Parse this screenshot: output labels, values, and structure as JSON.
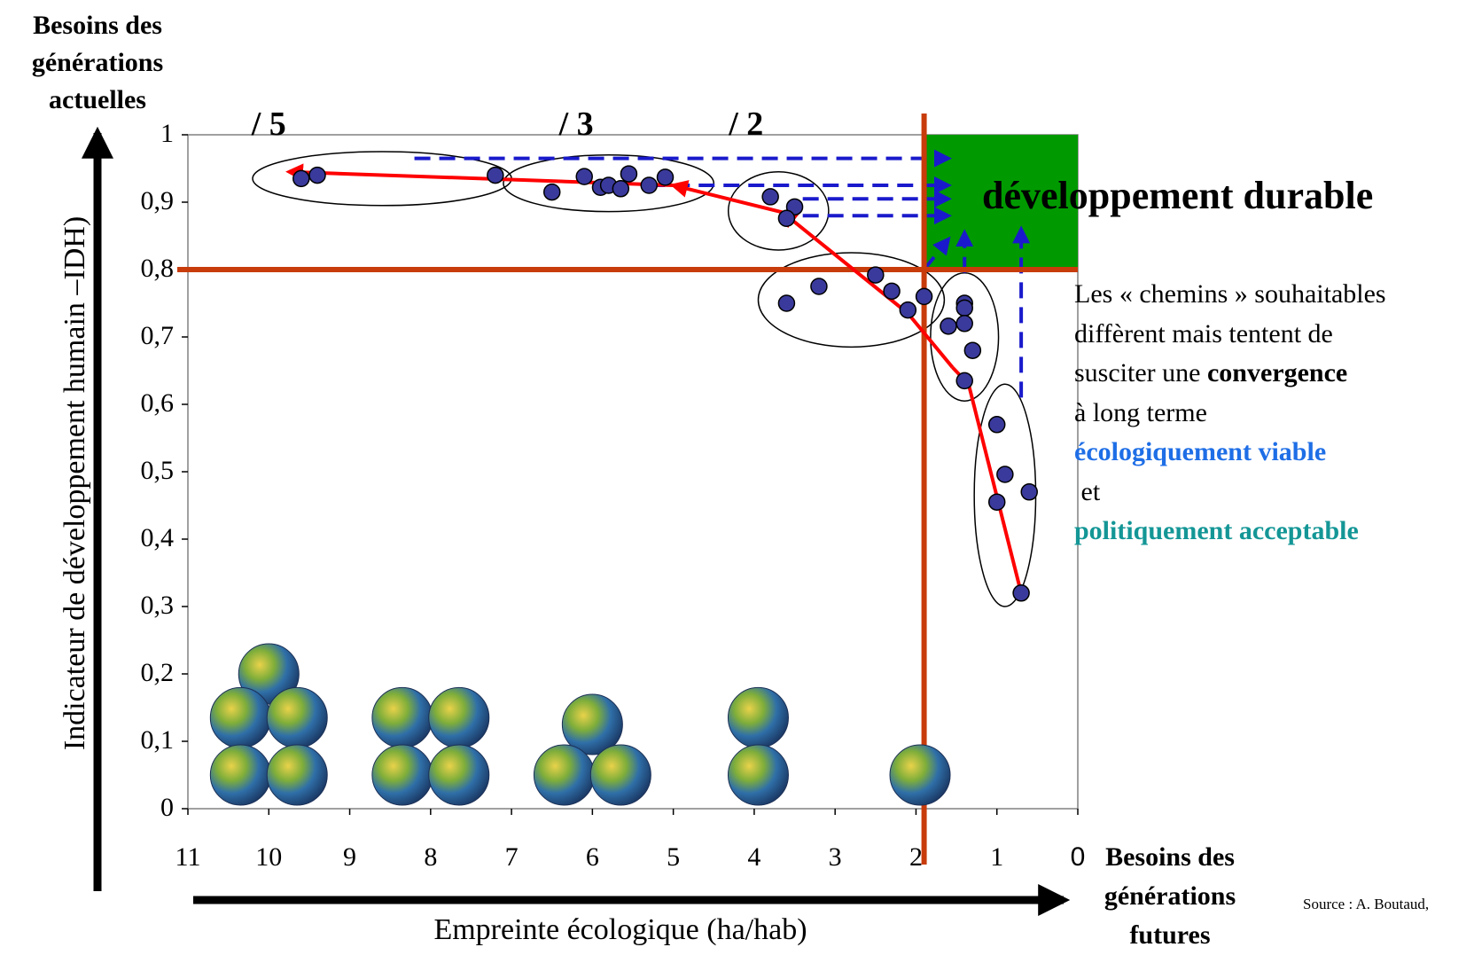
{
  "chart_data": {
    "type": "scatter",
    "xlabel": "Empreinte écologique (ha/hab)",
    "ylabel": "Indicateur de développement humain –IDH)",
    "x_axis_note": [
      "Besoins des",
      "générations",
      "futures"
    ],
    "y_axis_note": [
      "Besoins des",
      "générations",
      "actuelles"
    ],
    "xlim": [
      11,
      0
    ],
    "ylim": [
      0,
      1
    ],
    "x_reversed": true,
    "x_ticks": [
      "11",
      "10",
      "9",
      "8",
      "7",
      "6",
      "5",
      "4",
      "3",
      "2",
      "1",
      "0"
    ],
    "y_ticks": [
      "0",
      "0,1",
      "0,2",
      "0,3",
      "0,4",
      "0,5",
      "0,6",
      "0,7",
      "0,8",
      "0,9",
      "1"
    ],
    "thresholds": {
      "x": 1.9,
      "y": 0.8
    },
    "zone_label": "développement durable",
    "zone_color": "#009a00",
    "threshold_color": "#c83c0c",
    "path_color": "#ff0000",
    "guide_color": "#1a1acc",
    "point_color": "#3a3a9c",
    "divisor_labels": [
      {
        "text": "/ 5",
        "x": 10.0
      },
      {
        "text": "/ 3",
        "x": 6.2
      },
      {
        "text": "/ 2",
        "x": 4.1
      }
    ],
    "points": [
      {
        "x": 9.6,
        "y": 0.935
      },
      {
        "x": 9.4,
        "y": 0.94
      },
      {
        "x": 7.2,
        "y": 0.94
      },
      {
        "x": 6.5,
        "y": 0.915
      },
      {
        "x": 6.1,
        "y": 0.938
      },
      {
        "x": 5.9,
        "y": 0.922
      },
      {
        "x": 5.8,
        "y": 0.925
      },
      {
        "x": 5.65,
        "y": 0.92
      },
      {
        "x": 5.55,
        "y": 0.942
      },
      {
        "x": 5.3,
        "y": 0.925
      },
      {
        "x": 5.1,
        "y": 0.937
      },
      {
        "x": 3.8,
        "y": 0.908
      },
      {
        "x": 3.5,
        "y": 0.893
      },
      {
        "x": 3.6,
        "y": 0.876
      },
      {
        "x": 3.2,
        "y": 0.775
      },
      {
        "x": 3.6,
        "y": 0.75
      },
      {
        "x": 2.5,
        "y": 0.792
      },
      {
        "x": 2.3,
        "y": 0.768
      },
      {
        "x": 2.1,
        "y": 0.74
      },
      {
        "x": 1.9,
        "y": 0.76
      },
      {
        "x": 1.6,
        "y": 0.716
      },
      {
        "x": 1.4,
        "y": 0.75
      },
      {
        "x": 1.4,
        "y": 0.743
      },
      {
        "x": 1.4,
        "y": 0.72
      },
      {
        "x": 1.3,
        "y": 0.68
      },
      {
        "x": 1.4,
        "y": 0.635
      },
      {
        "x": 1.0,
        "y": 0.57
      },
      {
        "x": 0.9,
        "y": 0.496
      },
      {
        "x": 0.6,
        "y": 0.47
      },
      {
        "x": 1.0,
        "y": 0.455
      },
      {
        "x": 0.7,
        "y": 0.32
      }
    ],
    "groups": [
      {
        "cx": 8.6,
        "cy": 0.935,
        "rx": 1.6,
        "ry": 0.04
      },
      {
        "cx": 5.8,
        "cy": 0.928,
        "rx": 1.3,
        "ry": 0.042
      },
      {
        "cx": 3.7,
        "cy": 0.887,
        "rx": 0.62,
        "ry": 0.058
      },
      {
        "cx": 2.8,
        "cy": 0.755,
        "rx": 1.15,
        "ry": 0.07
      },
      {
        "cx": 1.4,
        "cy": 0.7,
        "rx": 0.42,
        "ry": 0.095
      },
      {
        "cx": 0.9,
        "cy": 0.465,
        "rx": 0.38,
        "ry": 0.165
      }
    ],
    "path": [
      {
        "x": 0.7,
        "y": 0.32
      },
      {
        "x": 1.35,
        "y": 0.63
      },
      {
        "x": 1.55,
        "y": 0.655
      },
      {
        "x": 2.1,
        "y": 0.735
      },
      {
        "x": 3.65,
        "y": 0.885
      },
      {
        "x": 5.0,
        "y": 0.925
      },
      {
        "x": 9.75,
        "y": 0.945
      }
    ],
    "path_arrowheads": [
      {
        "x": 3.65,
        "y": 0.885
      },
      {
        "x": 5.0,
        "y": 0.925
      },
      {
        "x": 9.75,
        "y": 0.945
      }
    ],
    "guides": [
      {
        "x1": 8.2,
        "y1": 0.965,
        "x2": 1.6,
        "y2": 0.965
      },
      {
        "x1": 5.3,
        "y1": 0.925,
        "x2": 1.6,
        "y2": 0.925
      },
      {
        "x1": 3.4,
        "y1": 0.905,
        "x2": 1.6,
        "y2": 0.905
      },
      {
        "x1": 3.4,
        "y1": 0.88,
        "x2": 1.6,
        "y2": 0.88
      },
      {
        "x1": 1.9,
        "y1": 0.8,
        "x2": 1.6,
        "y2": 0.845
      },
      {
        "x1": 1.4,
        "y1": 0.795,
        "x2": 1.4,
        "y2": 0.855
      },
      {
        "x1": 0.7,
        "y1": 0.61,
        "x2": 0.7,
        "y2": 0.86
      }
    ],
    "earths": [
      {
        "x": 10.0,
        "y": 0.2
      },
      {
        "x": 10.35,
        "y": 0.135
      },
      {
        "x": 9.65,
        "y": 0.135
      },
      {
        "x": 10.35,
        "y": 0.05
      },
      {
        "x": 9.65,
        "y": 0.05
      },
      {
        "x": 8.35,
        "y": 0.135
      },
      {
        "x": 7.65,
        "y": 0.135
      },
      {
        "x": 8.35,
        "y": 0.05
      },
      {
        "x": 7.65,
        "y": 0.05
      },
      {
        "x": 6.0,
        "y": 0.125
      },
      {
        "x": 6.35,
        "y": 0.05
      },
      {
        "x": 5.65,
        "y": 0.05
      },
      {
        "x": 3.95,
        "y": 0.135
      },
      {
        "x": 3.95,
        "y": 0.05
      },
      {
        "x": 1.95,
        "y": 0.05
      }
    ]
  },
  "side_text": {
    "line1": "Les « chemins » souhaitables",
    "line2": "diffèrent mais tentent de",
    "line3_prefix": "susciter une ",
    "line3_bold": "convergence",
    "line4": "à long terme",
    "line5": "écologiquement viable",
    "line6": " et",
    "line7": "politiquement acceptable",
    "line5_color": "#1e6ee6",
    "line7_color": "#149696"
  },
  "source": "Source : A. Boutaud,"
}
